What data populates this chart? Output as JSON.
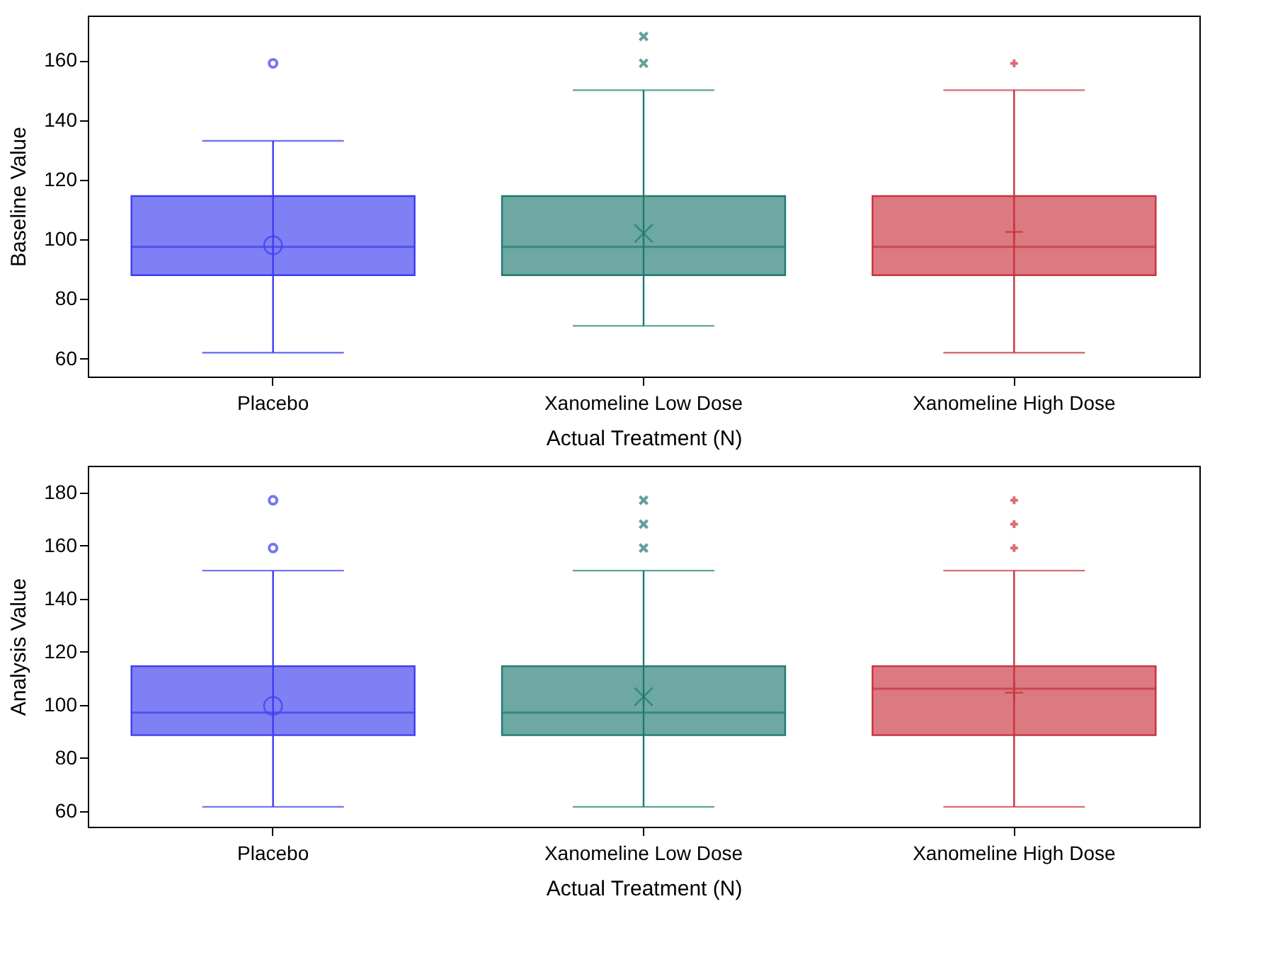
{
  "chart_data": [
    {
      "type": "box",
      "ylabel": "Baseline Value",
      "xlabel": "Actual Treatment (N)",
      "categories": [
        "Placebo",
        "Xanomeline Low Dose",
        "Xanomeline High Dose"
      ],
      "ylim": [
        54,
        175
      ],
      "yticks": [
        60,
        80,
        100,
        120,
        140,
        160
      ],
      "grid": false,
      "legend": false,
      "series": [
        {
          "color": "#3c3cf0",
          "marker": "circle",
          "boxes": [
            {
              "low": 62,
              "q1": 88,
              "median": 97.5,
              "q3": 114.5,
              "high": 133,
              "mean": 98,
              "outliers": [
                159
              ]
            },
            null,
            null
          ]
        },
        {
          "color": "#1f7a70",
          "marker": "cross",
          "boxes": [
            null,
            {
              "low": 71,
              "q1": 88,
              "median": 97.5,
              "q3": 114.5,
              "high": 150,
              "mean": 102,
              "outliers": [
                159,
                168
              ]
            },
            null
          ]
        },
        {
          "color": "#c8323c",
          "marker": "plus",
          "boxes": [
            null,
            null,
            {
              "low": 62,
              "q1": 88,
              "median": 97.5,
              "q3": 114.5,
              "high": 150,
              "mean": 102.5,
              "outliers": [
                159
              ]
            }
          ]
        }
      ]
    },
    {
      "type": "box",
      "ylabel": "Analysis Value",
      "xlabel": "Actual Treatment (N)",
      "categories": [
        "Placebo",
        "Xanomeline Low Dose",
        "Xanomeline High Dose"
      ],
      "ylim": [
        54,
        190
      ],
      "yticks": [
        60,
        80,
        100,
        120,
        140,
        160,
        180
      ],
      "grid": false,
      "legend": false,
      "series": [
        {
          "color": "#3c3cf0",
          "marker": "circle",
          "boxes": [
            {
              "low": 61.5,
              "q1": 88.5,
              "median": 97,
              "q3": 114.5,
              "high": 150.5,
              "mean": 99.5,
              "outliers": [
                159,
                177
              ]
            },
            null,
            null
          ]
        },
        {
          "color": "#1f7a70",
          "marker": "cross",
          "boxes": [
            null,
            {
              "low": 61.5,
              "q1": 88.5,
              "median": 97,
              "q3": 114.5,
              "high": 150.5,
              "mean": 103,
              "outliers": [
                159,
                168,
                177
              ]
            },
            null
          ]
        },
        {
          "color": "#c8323c",
          "marker": "plus",
          "boxes": [
            null,
            null,
            {
              "low": 61.5,
              "q1": 88.5,
              "median": 106,
              "q3": 114.5,
              "high": 150.5,
              "mean": 104.5,
              "outliers": [
                159,
                168,
                177
              ]
            }
          ]
        }
      ]
    }
  ]
}
